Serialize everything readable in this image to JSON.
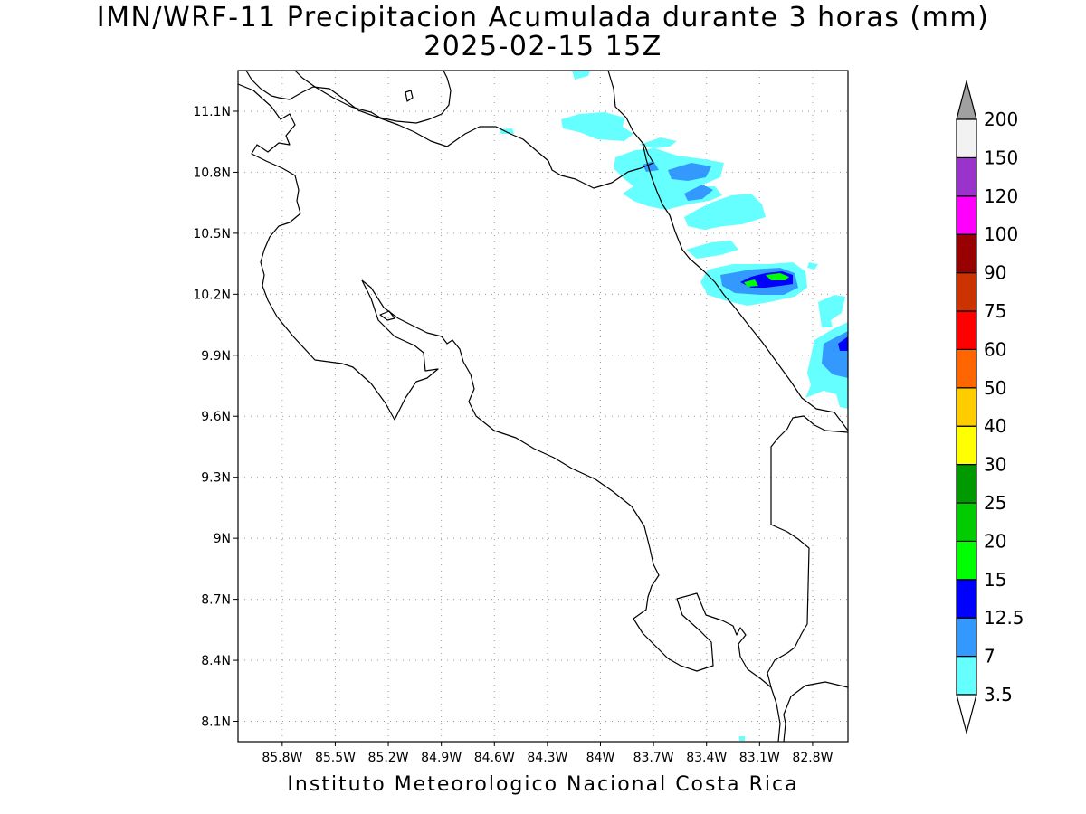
{
  "title": {
    "line1": "IMN/WRF-11 Precipitacion Acumulada durante 3 horas (mm)",
    "line2": "2025-02-15 15Z"
  },
  "footer": "Instituto Meteorologico Nacional Costa Rica",
  "map": {
    "lon_range": [
      -86.05,
      -82.6
    ],
    "lat_range": [
      8.0,
      11.3
    ],
    "x_ticks": [
      "85.8W",
      "85.5W",
      "85.2W",
      "84.9W",
      "84.6W",
      "84.3W",
      "84W",
      "83.7W",
      "83.4W",
      "83.1W",
      "82.8W"
    ],
    "y_ticks": [
      "11.1N",
      "10.8N",
      "10.5N",
      "10.2N",
      "9.9N",
      "9.6N",
      "9.3N",
      "9N",
      "8.7N",
      "8.4N",
      "8.1N"
    ],
    "grid": "dotted"
  },
  "colorbar": {
    "levels": [
      "3.5",
      "7",
      "12.5",
      "15",
      "20",
      "25",
      "30",
      "40",
      "50",
      "60",
      "75",
      "90",
      "100",
      "120",
      "150",
      "200"
    ],
    "colors": [
      "#66ffff",
      "#3399ff",
      "#0000ff",
      "#00ff00",
      "#00cc00",
      "#009900",
      "#ffff00",
      "#ffcc00",
      "#ff6600",
      "#ff0000",
      "#cc3300",
      "#990000",
      "#ff00ff",
      "#9933cc",
      "#f2f2f2"
    ],
    "over_color": "#a0a0a0",
    "under_color": "#ffffff"
  }
}
